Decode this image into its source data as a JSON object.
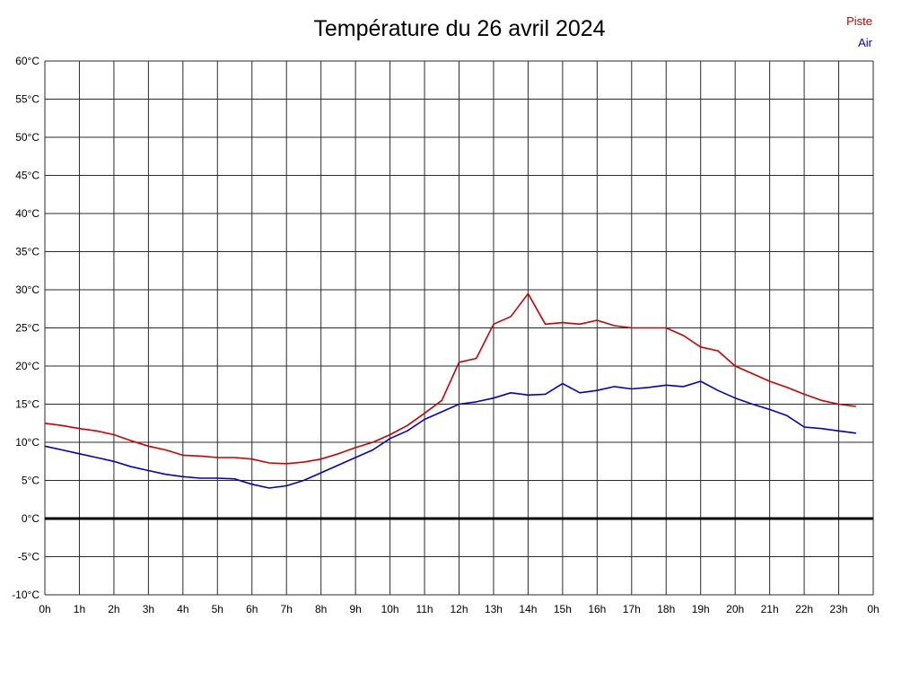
{
  "legend": {
    "piste": "Piste",
    "air": "Air"
  },
  "colors": {
    "piste": "#cc0000",
    "air": "#0000cc",
    "grid": "#2a2a2a",
    "zero_line": "#000000",
    "text": "#000000",
    "background": "#ffffff"
  },
  "chart_data": {
    "type": "line",
    "title": "Température du 26 avril 2024",
    "xlabel": "",
    "ylabel": "",
    "xlim": [
      0,
      24
    ],
    "ylim": [
      -10,
      60
    ],
    "y_tick_step": 5,
    "grid": true,
    "zero_line": true,
    "legend_position": "top-right",
    "x_tick_labels": [
      "0h",
      "1h",
      "2h",
      "3h",
      "4h",
      "5h",
      "6h",
      "7h",
      "8h",
      "9h",
      "10h",
      "11h",
      "12h",
      "13h",
      "14h",
      "15h",
      "16h",
      "17h",
      "18h",
      "19h",
      "20h",
      "21h",
      "22h",
      "23h",
      "0h"
    ],
    "y_tick_labels": [
      "60°C",
      "55°C",
      "50°C",
      "45°C",
      "40°C",
      "35°C",
      "30°C",
      "25°C",
      "20°C",
      "15°C",
      "10°C",
      "5°C",
      "0°C",
      "-5°C",
      "-10°C"
    ],
    "x": [
      0,
      0.5,
      1,
      1.5,
      2,
      2.5,
      3,
      3.5,
      4,
      4.5,
      5,
      5.5,
      6,
      6.5,
      7,
      7.5,
      8,
      8.5,
      9,
      9.5,
      10,
      10.5,
      11,
      11.5,
      12,
      12.5,
      13,
      13.5,
      14,
      14.5,
      15,
      15.5,
      16,
      16.5,
      17,
      17.5,
      18,
      18.5,
      19,
      19.5,
      20,
      20.5,
      21,
      21.5,
      22,
      22.5,
      23,
      23.5
    ],
    "series": [
      {
        "name": "Piste",
        "color": "#cc0000",
        "values": [
          12.5,
          12.2,
          11.8,
          11.5,
          11.0,
          10.2,
          9.5,
          9.0,
          8.3,
          8.2,
          8.0,
          8.0,
          7.8,
          7.3,
          7.2,
          7.4,
          7.8,
          8.5,
          9.3,
          10.0,
          11.0,
          12.2,
          13.8,
          15.5,
          20.5,
          21.0,
          25.5,
          26.5,
          29.5,
          25.5,
          25.7,
          25.5,
          26.0,
          25.3,
          25.0,
          25.0,
          25.0,
          24.0,
          22.5,
          22.0,
          20.0,
          19.0,
          18.0,
          17.2,
          16.3,
          15.5,
          15.0,
          14.7
        ]
      },
      {
        "name": "Air",
        "color": "#0000cc",
        "values": [
          9.5,
          9.0,
          8.5,
          8.0,
          7.5,
          6.8,
          6.3,
          5.8,
          5.5,
          5.3,
          5.3,
          5.2,
          4.5,
          4.0,
          4.3,
          5.0,
          6.0,
          7.0,
          8.0,
          9.0,
          10.5,
          11.5,
          13.0,
          14.0,
          15.0,
          15.3,
          15.8,
          16.5,
          16.2,
          16.3,
          17.7,
          16.5,
          16.8,
          17.3,
          17.0,
          17.2,
          17.5,
          17.3,
          18.0,
          16.8,
          15.8,
          15.0,
          14.3,
          13.5,
          12.0,
          11.8,
          11.5,
          11.2
        ]
      }
    ]
  }
}
